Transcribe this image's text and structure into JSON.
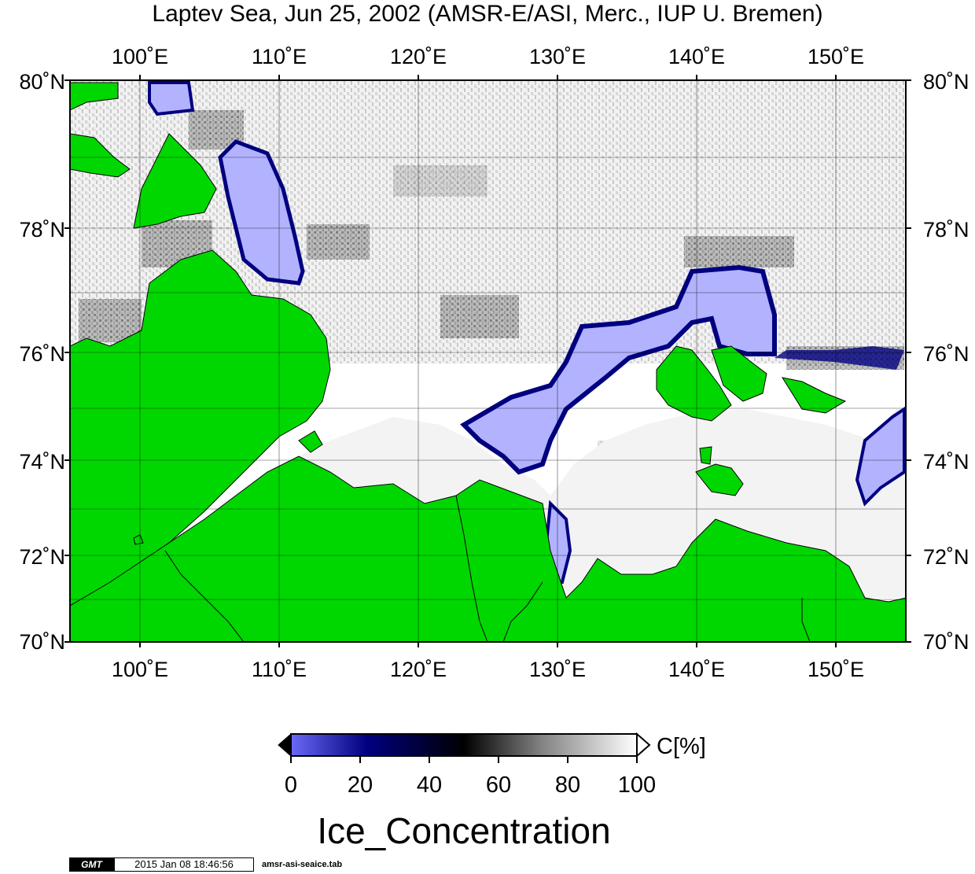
{
  "title": "Laptev Sea, Jun 25, 2002 (AMSR-E/ASI, Merc., IUP U. Bremen)",
  "map": {
    "lon_ticks": [
      "100˚E",
      "110˚E",
      "120˚E",
      "130˚E",
      "140˚E",
      "150˚E"
    ],
    "lat_ticks": [
      "80˚N",
      "78˚N",
      "76˚N",
      "74˚N",
      "72˚N",
      "70˚N"
    ],
    "lon_range": [
      95,
      155
    ],
    "lat_range": [
      70,
      80
    ],
    "projection": "Mercator",
    "colors": {
      "land": "#00d700",
      "open_water": "#ffffff",
      "low_concentration": "#b2b2ff",
      "mid_concentration": "#000080",
      "grid": "#000000"
    }
  },
  "colorbar": {
    "ticks": [
      "0",
      "20",
      "40",
      "60",
      "80",
      "100"
    ],
    "unit": "C[%]",
    "stops": [
      "#6a6af6",
      "#000080",
      "#000000",
      "#808080",
      "#ffffff"
    ]
  },
  "variable_name": "Ice_Concentration",
  "footer": {
    "logo": "GMT",
    "timestamp": "2015 Jan 08 18:46:56",
    "file": "amsr-asi-seaice.tab"
  }
}
